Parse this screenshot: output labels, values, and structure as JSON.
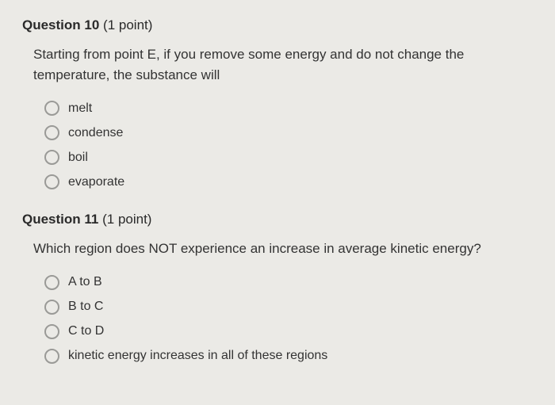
{
  "background_color": "#ebeae6",
  "text_color": "#333333",
  "radio_border_color": "#9a9a97",
  "questions": [
    {
      "number_label": "Question 10",
      "points_label": "(1 point)",
      "prompt": "Starting from point E, if you remove some energy and do not change the temperature, the substance will",
      "options": [
        "melt",
        "condense",
        "boil",
        "evaporate"
      ]
    },
    {
      "number_label": "Question 11",
      "points_label": "(1 point)",
      "prompt": "Which region does NOT experience an increase in average kinetic energy?",
      "options": [
        "A to B",
        "B to C",
        "C to D",
        "kinetic energy increases in all of these regions"
      ]
    }
  ]
}
